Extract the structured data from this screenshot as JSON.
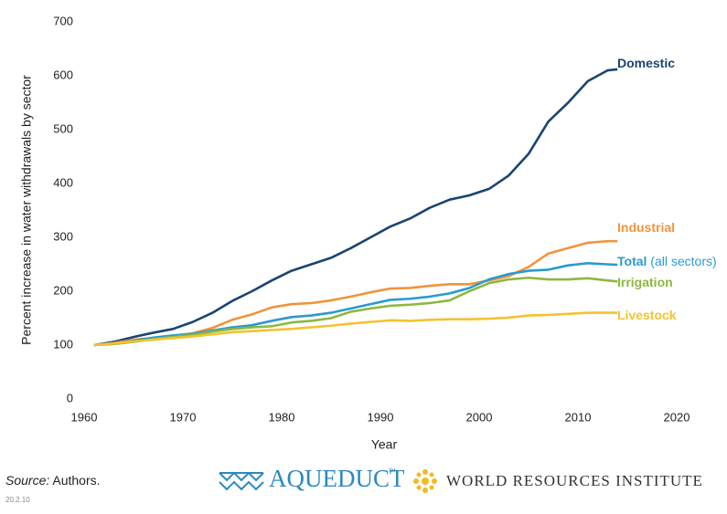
{
  "chart_data": {
    "type": "line",
    "x": [
      1961,
      1963,
      1965,
      1967,
      1969,
      1971,
      1973,
      1975,
      1977,
      1979,
      1981,
      1983,
      1985,
      1987,
      1989,
      1991,
      1993,
      1995,
      1997,
      1999,
      2001,
      2003,
      2005,
      2007,
      2009,
      2011,
      2013,
      2014
    ],
    "series": [
      {
        "name": "Domestic",
        "color": "#1b4472",
        "values": [
          100,
          106,
          115,
          123,
          130,
          143,
          160,
          182,
          200,
          220,
          238,
          250,
          262,
          280,
          300,
          320,
          335,
          355,
          370,
          378,
          390,
          415,
          455,
          515,
          550,
          590,
          610,
          612
        ]
      },
      {
        "name": "Industrial",
        "color": "#f0953a",
        "values": [
          100,
          104,
          110,
          113,
          117,
          122,
          132,
          147,
          157,
          170,
          176,
          178,
          183,
          190,
          198,
          205,
          206,
          210,
          213,
          213,
          220,
          228,
          245,
          270,
          280,
          290,
          293,
          293
        ]
      },
      {
        "name": "Total",
        "suffix": "(all sectors)",
        "color": "#2a9ad0",
        "values": [
          100,
          103,
          108,
          114,
          118,
          121,
          127,
          133,
          137,
          145,
          152,
          155,
          160,
          168,
          176,
          184,
          186,
          190,
          196,
          206,
          222,
          232,
          238,
          240,
          248,
          252,
          250,
          249
        ]
      },
      {
        "name": "Irrigation",
        "color": "#8db83e",
        "values": [
          100,
          102,
          106,
          111,
          115,
          119,
          125,
          130,
          133,
          135,
          142,
          145,
          150,
          162,
          168,
          173,
          175,
          178,
          183,
          200,
          215,
          222,
          225,
          222,
          222,
          224,
          220,
          218
        ]
      },
      {
        "name": "Livestock",
        "color": "#f5c230",
        "values": [
          100,
          103,
          107,
          110,
          113,
          116,
          120,
          124,
          126,
          128,
          130,
          133,
          136,
          140,
          143,
          146,
          145,
          147,
          148,
          148,
          149,
          151,
          155,
          156,
          158,
          160,
          160,
          160
        ]
      }
    ],
    "xlabel": "Year",
    "ylabel": "Percent increase in water withdrawals by sector",
    "xlim": [
      1960,
      2020
    ],
    "xticks": [
      1960,
      1970,
      1980,
      1990,
      2000,
      2010,
      2020
    ],
    "ylim": [
      0,
      700
    ],
    "yticks": [
      0,
      100,
      200,
      300,
      400,
      500,
      600,
      700
    ],
    "grid": false
  },
  "footer": {
    "source_label": "Source:",
    "source_text": "Authors.",
    "code": "20.2.10",
    "aqueduct": "AQUEDUCT",
    "trademark": "™",
    "wri": "WORLD RESOURCES INSTITUTE"
  }
}
